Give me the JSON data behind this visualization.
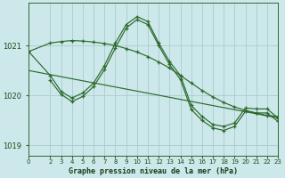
{
  "background_color": "#cce8ea",
  "grid_color": "#aacccc",
  "line_color": "#2d6a2d",
  "title": "Graphe pression niveau de la mer (hPa)",
  "xlim": [
    0,
    23
  ],
  "ylim": [
    1018.8,
    1021.85
  ],
  "yticks": [
    1019,
    1020,
    1021
  ],
  "xticks": [
    0,
    2,
    3,
    4,
    5,
    6,
    7,
    8,
    9,
    10,
    11,
    12,
    13,
    14,
    15,
    16,
    17,
    18,
    19,
    20,
    21,
    22,
    23
  ],
  "line1_x": [
    0,
    2,
    3,
    4,
    5,
    6,
    7,
    8,
    9,
    10,
    11,
    12,
    13,
    14,
    15,
    16,
    17,
    18,
    19,
    20,
    21,
    22,
    23
  ],
  "line1_y": [
    1020.88,
    1021.05,
    1021.08,
    1021.1,
    1021.09,
    1021.07,
    1021.04,
    1021.0,
    1020.94,
    1020.87,
    1020.78,
    1020.67,
    1020.55,
    1020.4,
    1020.25,
    1020.1,
    1019.97,
    1019.86,
    1019.77,
    1019.7,
    1019.65,
    1019.6,
    1019.58
  ],
  "line2_x": [
    0,
    2,
    3,
    4,
    5,
    6,
    7,
    8,
    9,
    10,
    11,
    12,
    13,
    14,
    15,
    16,
    17,
    18,
    19,
    20,
    21,
    22,
    23
  ],
  "line2_y": [
    1020.88,
    1020.4,
    1020.08,
    1019.95,
    1020.05,
    1020.25,
    1020.6,
    1021.05,
    1021.42,
    1021.58,
    1021.48,
    1021.05,
    1020.68,
    1020.4,
    1019.8,
    1019.58,
    1019.42,
    1019.38,
    1019.45,
    1019.75,
    1019.73,
    1019.73,
    1019.55
  ],
  "line3_x": [
    2,
    3,
    4,
    5,
    6,
    7,
    8,
    9,
    10,
    11,
    12,
    13,
    14,
    15,
    16,
    17,
    18,
    19,
    20,
    21,
    22,
    23
  ],
  "line3_y": [
    1020.3,
    1020.02,
    1019.88,
    1019.98,
    1020.18,
    1020.52,
    1020.95,
    1021.35,
    1021.52,
    1021.42,
    1021.0,
    1020.62,
    1020.32,
    1019.72,
    1019.5,
    1019.35,
    1019.3,
    1019.38,
    1019.68,
    1019.65,
    1019.65,
    1019.48
  ],
  "line4_x": [
    0,
    23
  ],
  "line4_y": [
    1020.5,
    1019.55
  ]
}
